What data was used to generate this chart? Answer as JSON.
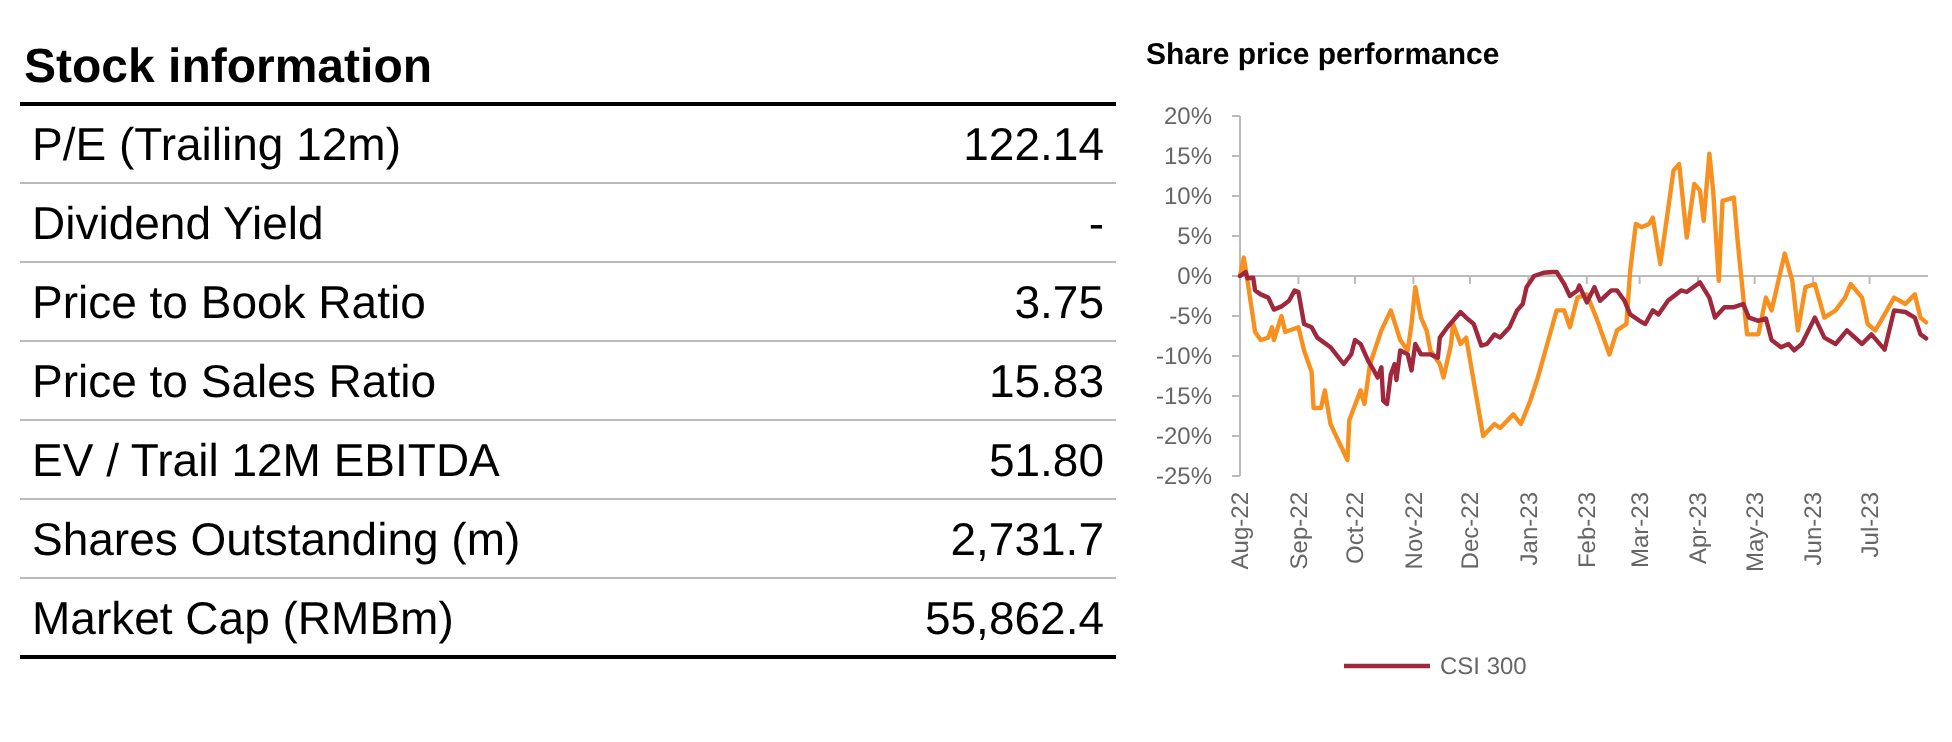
{
  "chart_data": [
    {
      "type": "other",
      "title": "Stock information",
      "categories": [
        "P/E (Trailing 12m)",
        "Dividend Yield",
        "Price to Book Ratio",
        "Price to Sales Ratio",
        "EV / Trail 12M EBITDA",
        "Shares Outstanding (m)",
        "Market Cap (RMBm)"
      ],
      "value_labels": [
        "122.14",
        "-",
        "3.75",
        "15.83",
        "51.80",
        "2,731.7",
        "55,862.4"
      ]
    },
    {
      "type": "line",
      "title": "Share price performance",
      "legend": "bottom",
      "xlim": [
        "2022-08-01",
        "2023-08-01"
      ],
      "xticks": [
        {
          "value": "2022-08-01",
          "label": "Aug-22"
        },
        {
          "value": "2022-09-01",
          "label": "Sep-22"
        },
        {
          "value": "2022-10-01",
          "label": "Oct-22"
        },
        {
          "value": "2022-11-01",
          "label": "Nov-22"
        },
        {
          "value": "2022-12-01",
          "label": "Dec-22"
        },
        {
          "value": "2023-01-01",
          "label": "Jan-23"
        },
        {
          "value": "2023-02-01",
          "label": "Feb-23"
        },
        {
          "value": "2023-03-01",
          "label": "Mar-23"
        },
        {
          "value": "2023-04-01",
          "label": "Apr-23"
        },
        {
          "value": "2023-05-01",
          "label": "May-23"
        },
        {
          "value": "2023-06-01",
          "label": "Jun-23"
        },
        {
          "value": "2023-07-01",
          "label": "Jul-23"
        }
      ],
      "ylim": [
        -25,
        20
      ],
      "yticks": [
        {
          "value": 20,
          "label": "20%"
        },
        {
          "value": 15,
          "label": "15%"
        },
        {
          "value": 10,
          "label": "10%"
        },
        {
          "value": 5,
          "label": "5%"
        },
        {
          "value": 0,
          "label": "0%"
        },
        {
          "value": -5,
          "label": "-5%"
        },
        {
          "value": -10,
          "label": "-10%"
        },
        {
          "value": -15,
          "label": "-15%"
        },
        {
          "value": -20,
          "label": "-20%"
        },
        {
          "value": -25,
          "label": "-25%"
        }
      ],
      "series": [
        {
          "color": "#f7901e",
          "x": [
            "2022-08-01",
            "2022-08-03",
            "2022-08-05",
            "2022-08-09",
            "2022-08-12",
            "2022-08-16",
            "2022-08-18",
            "2022-08-19",
            "2022-08-23",
            "2022-08-25",
            "2022-09-01",
            "2022-09-04",
            "2022-09-08",
            "2022-09-09",
            "2022-09-13",
            "2022-09-15",
            "2022-09-18",
            "2022-09-27",
            "2022-09-28",
            "2022-10-04",
            "2022-10-06",
            "2022-10-09",
            "2022-10-15",
            "2022-10-20",
            "2022-10-25",
            "2022-10-29",
            "2022-10-31",
            "2022-11-02",
            "2022-11-05",
            "2022-11-08",
            "2022-11-10",
            "2022-11-15",
            "2022-11-17",
            "2022-11-21",
            "2022-11-22",
            "2022-11-26",
            "2022-11-29",
            "2022-12-08",
            "2022-12-14",
            "2022-12-17",
            "2022-12-24",
            "2022-12-28",
            "2023-01-02",
            "2023-01-06",
            "2023-01-11",
            "2023-01-16",
            "2023-01-20",
            "2023-01-23",
            "2023-01-27",
            "2023-02-01",
            "2023-02-06",
            "2023-02-13",
            "2023-02-17",
            "2023-02-22",
            "2023-02-24",
            "2023-02-27",
            "2023-03-02",
            "2023-03-06",
            "2023-03-08",
            "2023-03-12",
            "2023-03-14",
            "2023-03-19",
            "2023-03-22",
            "2023-03-26",
            "2023-03-30",
            "2023-04-02",
            "2023-04-04",
            "2023-04-07",
            "2023-04-09",
            "2023-04-12",
            "2023-04-14",
            "2023-04-20",
            "2023-04-22",
            "2023-04-27",
            "2023-05-03",
            "2023-05-07",
            "2023-05-10",
            "2023-05-17",
            "2023-05-21",
            "2023-05-24",
            "2023-05-28",
            "2023-06-02",
            "2023-06-07",
            "2023-06-13",
            "2023-06-18",
            "2023-06-21",
            "2023-06-27",
            "2023-06-30",
            "2023-07-04",
            "2023-07-07",
            "2023-07-14",
            "2023-07-20",
            "2023-07-25",
            "2023-07-28",
            "2023-07-31"
          ],
          "values": [
            0,
            2.3,
            -0.6,
            -7,
            -8,
            -7.7,
            -6.4,
            -8,
            -5,
            -7,
            -6.4,
            -9.3,
            -12,
            -16.5,
            -16.5,
            -14.3,
            -18.5,
            -23,
            -18,
            -14.3,
            -16,
            -11,
            -6.8,
            -4.3,
            -8,
            -9.3,
            -6,
            -1.4,
            -5.2,
            -6.8,
            -9.3,
            -11,
            -12.7,
            -8.5,
            -6,
            -8.5,
            -7.7,
            -20,
            -18.5,
            -19,
            -17.3,
            -18.5,
            -15.6,
            -12.7,
            -8.5,
            -4.3,
            -4.3,
            -6.4,
            -2.7,
            -2.3,
            -5.2,
            -9.8,
            -6.8,
            -6,
            0.7,
            6.5,
            6.1,
            6.5,
            7.3,
            1.5,
            4.8,
            13.2,
            14,
            4.8,
            11.5,
            10.7,
            6.9,
            15.3,
            10.7,
            -0.6,
            9.4,
            9.8,
            4.4,
            -7.3,
            -7.3,
            -2.7,
            -4.3,
            2.8,
            -0.6,
            -6.8,
            -1.4,
            -1,
            -5.2,
            -4.3,
            -2.7,
            -1,
            -2.7,
            -6,
            -6.8,
            -5.6,
            -2.7,
            -3.5,
            -2.3,
            -5.2,
            -5.8
          ]
        },
        {
          "name": "CSI 300",
          "color": "#a0283c",
          "x": [
            "2022-08-01",
            "2022-08-04",
            "2022-08-05",
            "2022-08-08",
            "2022-08-09",
            "2022-08-12",
            "2022-08-16",
            "2022-08-19",
            "2022-08-23",
            "2022-08-27",
            "2022-08-30",
            "2022-09-01",
            "2022-09-04",
            "2022-09-08",
            "2022-09-11",
            "2022-09-18",
            "2022-09-25",
            "2022-09-29",
            "2022-10-01",
            "2022-10-04",
            "2022-10-08",
            "2022-10-11",
            "2022-10-13",
            "2022-10-15",
            "2022-10-16",
            "2022-10-18",
            "2022-10-20",
            "2022-10-22",
            "2022-10-23",
            "2022-10-25",
            "2022-10-29",
            "2022-10-31",
            "2022-11-02",
            "2022-11-05",
            "2022-11-10",
            "2022-11-14",
            "2022-11-15",
            "2022-11-19",
            "2022-11-22",
            "2022-11-26",
            "2022-11-29",
            "2022-12-03",
            "2022-12-07",
            "2022-12-10",
            "2022-12-14",
            "2022-12-17",
            "2022-12-22",
            "2022-12-26",
            "2022-12-29",
            "2022-12-31",
            "2023-01-04",
            "2023-01-09",
            "2023-01-14",
            "2023-01-16",
            "2023-01-20",
            "2023-01-23",
            "2023-01-27",
            "2023-01-28",
            "2023-02-01",
            "2023-02-05",
            "2023-02-08",
            "2023-02-14",
            "2023-02-17",
            "2023-02-21",
            "2023-02-24",
            "2023-03-01",
            "2023-03-04",
            "2023-03-08",
            "2023-03-11",
            "2023-03-16",
            "2023-03-23",
            "2023-03-26",
            "2023-04-02",
            "2023-04-07",
            "2023-04-10",
            "2023-04-15",
            "2023-04-20",
            "2023-04-25",
            "2023-04-28",
            "2023-05-03",
            "2023-05-07",
            "2023-05-10",
            "2023-05-15",
            "2023-05-19",
            "2023-05-22",
            "2023-05-26",
            "2023-06-02",
            "2023-06-07",
            "2023-06-13",
            "2023-06-19",
            "2023-06-27",
            "2023-07-02",
            "2023-07-09",
            "2023-07-14",
            "2023-07-20",
            "2023-07-25",
            "2023-07-28",
            "2023-07-31"
          ],
          "values": [
            0,
            0.5,
            -0.3,
            -0.2,
            -1.8,
            -2.3,
            -2.7,
            -4.2,
            -3.8,
            -3.1,
            -1.8,
            -2,
            -6,
            -6.4,
            -7.7,
            -8.9,
            -11,
            -9.8,
            -8,
            -8.5,
            -10.6,
            -11.8,
            -12.7,
            -11.4,
            -15.6,
            -16,
            -12.3,
            -11,
            -13,
            -9.3,
            -9.8,
            -11.8,
            -8.5,
            -9.8,
            -9.8,
            -10.2,
            -7.7,
            -6.4,
            -5.6,
            -4.5,
            -5.2,
            -6,
            -8.7,
            -8.5,
            -7.3,
            -7.7,
            -6.4,
            -4.3,
            -3.5,
            -1.4,
            0,
            0.4,
            0.5,
            0.5,
            -1,
            -2.5,
            -1.8,
            -1.2,
            -3.3,
            -1.4,
            -3.1,
            -1.8,
            -1.8,
            -3.1,
            -4.8,
            -5.6,
            -6,
            -4.3,
            -4.8,
            -3.1,
            -1.8,
            -2,
            -0.8,
            -2.7,
            -5.2,
            -3.9,
            -3.9,
            -3.5,
            -5.2,
            -5.6,
            -5.3,
            -8,
            -8.9,
            -8.5,
            -9.3,
            -8.5,
            -5.2,
            -7.7,
            -8.5,
            -6.8,
            -8.5,
            -7.3,
            -9.2,
            -4.3,
            -4.5,
            -5.2,
            -7.3,
            -7.8
          ]
        }
      ]
    }
  ]
}
